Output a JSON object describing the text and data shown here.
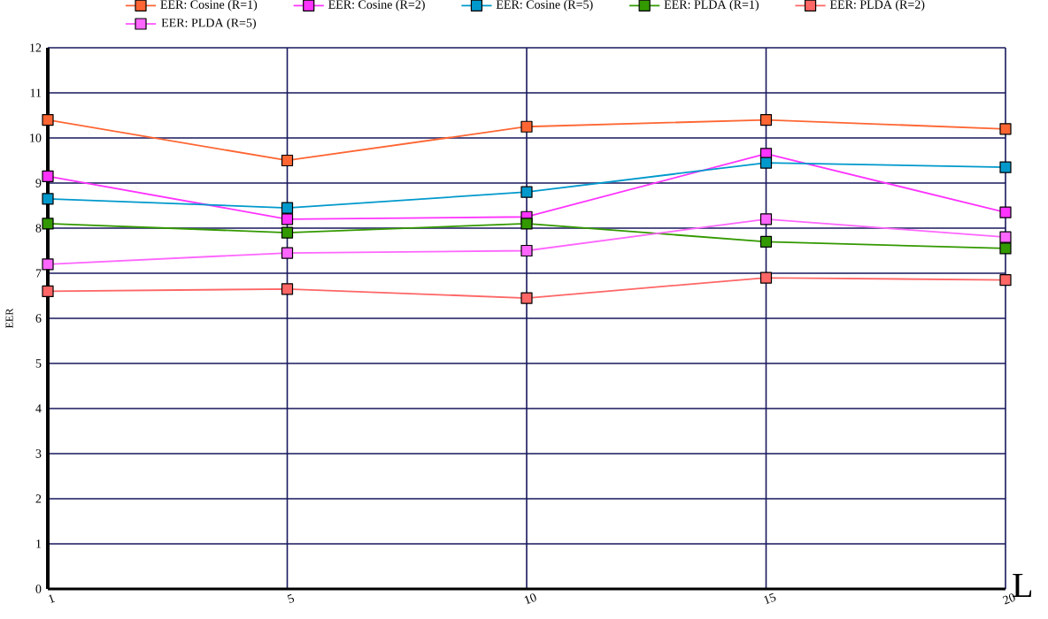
{
  "chart_data": {
    "type": "line",
    "xlabel": "L",
    "ylabel": "EER",
    "categories": [
      "1",
      "5",
      "10",
      "15",
      "20"
    ],
    "series": [
      {
        "name": "EER: Cosine (R=1)",
        "color": "#ff6633",
        "values": [
          10.4,
          9.5,
          10.25,
          10.4,
          10.2
        ]
      },
      {
        "name": "EER: Cosine (R=2)",
        "color": "#ff33ff",
        "values": [
          9.15,
          8.2,
          8.25,
          9.65,
          8.35
        ]
      },
      {
        "name": "EER: Cosine (R=5)",
        "color": "#0099cc",
        "values": [
          8.65,
          8.45,
          8.8,
          9.45,
          9.35
        ]
      },
      {
        "name": "EER: PLDA (R=1)",
        "color": "#339900",
        "values": [
          8.1,
          7.9,
          8.1,
          7.7,
          7.55
        ]
      },
      {
        "name": "EER: PLDA (R=2)",
        "color": "#ff6666",
        "values": [
          6.6,
          6.65,
          6.45,
          6.9,
          6.85
        ]
      },
      {
        "name": "EER: PLDA (R=5)",
        "color": "#ff66ff",
        "values": [
          7.2,
          7.45,
          7.5,
          8.2,
          7.8
        ]
      }
    ],
    "ylim": [
      0,
      12
    ],
    "yticks": [
      0,
      1,
      2,
      3,
      4,
      5,
      6,
      7,
      8,
      9,
      10,
      11,
      12
    ],
    "grid": true,
    "legend": "top",
    "marker": "square",
    "line_style": "solid"
  }
}
